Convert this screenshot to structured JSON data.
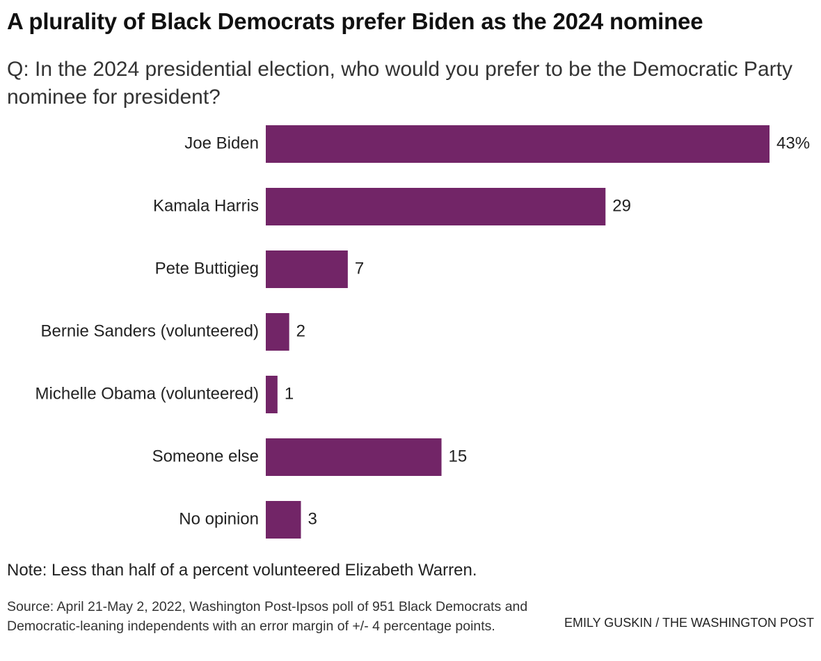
{
  "title": "A plurality of Black Democrats prefer Biden as the 2024 nominee",
  "subtitle": "Q: In the 2024 presidential election, who would you prefer to be the Democratic Party nominee for president?",
  "note": "Note: Less than half of a percent volunteered Elizabeth Warren.",
  "source": "Source: April 21-May 2, 2022, Washington Post-Ipsos poll of 951 Black Democrats and Democratic-leaning independents with an error margin of +/- 4 percentage points.",
  "credit": "EMILY GUSKIN / THE WASHINGTON POST",
  "colors": {
    "bar": "#722567",
    "text": "#222222"
  },
  "chart_data": {
    "type": "bar",
    "orientation": "horizontal",
    "categories": [
      "Joe Biden",
      "Kamala Harris",
      "Pete Buttigieg",
      "Bernie Sanders (volunteered)",
      "Michelle Obama (volunteered)",
      "Someone else",
      "No opinion"
    ],
    "values": [
      43,
      29,
      7,
      2,
      1,
      15,
      3
    ],
    "value_labels": [
      "43%",
      "29",
      "7",
      "2",
      "1",
      "15",
      "3"
    ],
    "unit": "%",
    "xlim": [
      0,
      43
    ],
    "grid": false,
    "legend": "none"
  }
}
